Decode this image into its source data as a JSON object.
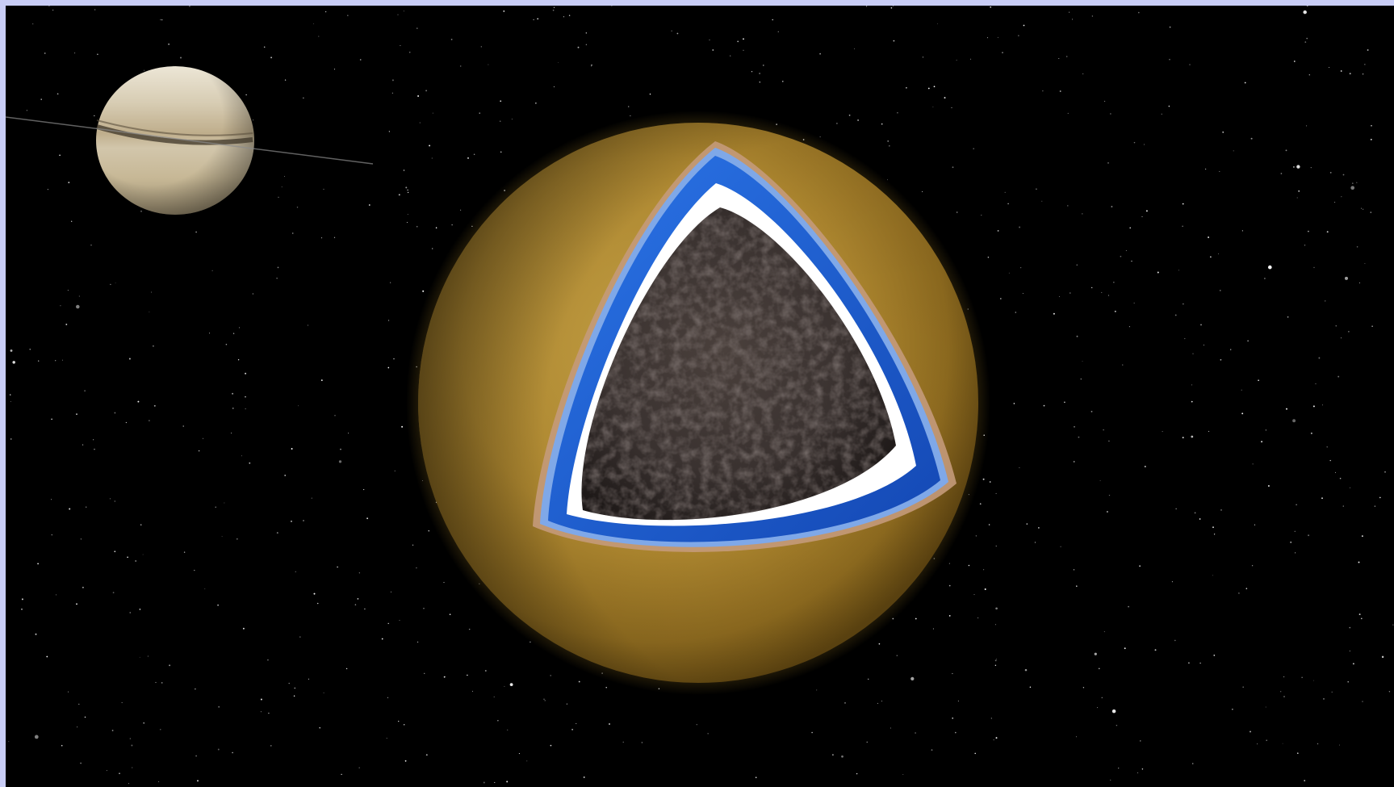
{
  "scene": {
    "subject": "cutaway-moon",
    "layers": [
      "haze-atmosphere",
      "crust-ice-shell",
      "subsurface-ocean",
      "high-pressure-ice",
      "rocky-core"
    ],
    "background": "starfield",
    "companion": "ringed-planet"
  },
  "colors": {
    "frame": "#c9cdf6",
    "space": "#000000",
    "atmosphere": "#c79a2b",
    "ocean": "#1e5fd1",
    "ice": "#ffffff",
    "core": "#3a3230",
    "planet": "#d8ccb0"
  }
}
